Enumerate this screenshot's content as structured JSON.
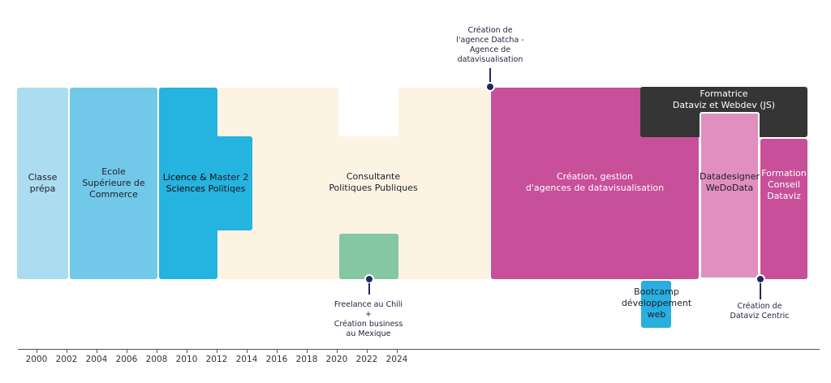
{
  "colors": {
    "prepa": "#acdcf0",
    "ecole": "#72c8e8",
    "licence": "#25b3df",
    "consultante": "#fdf3e3",
    "freelance": "#84c7a2",
    "creation": "#c84f99",
    "formatrice": "#353535",
    "datadesigner": "#e08fbf",
    "formation": "#c84f99",
    "bootcamp": "#29aee0",
    "marker": "#1f2b5c"
  },
  "blocks": {
    "prepa": "Classe\nprépa",
    "ecole": "Ecole\nSupérieure de\nCommerce",
    "licence": "Licence & Master 2\nSciences Politiqes",
    "consultante": "Consultante\nPolitiques Publiques",
    "creation": "Création, gestion\nd'agences de datavisualisation",
    "formatrice": "Formatrice\nDataviz et Webdev (JS)",
    "datadesigner": "Datadesigner\nWeDoData",
    "formation": "Formation\nConseil\nDataviz",
    "bootcamp": "Bootcamp\ndéveloppement\nweb"
  },
  "annotations": {
    "datcha": "Création de\nl'agence Datcha -\nAgence de\ndatavisualisation",
    "freelance": "Freelance au Chili\n+\nCréation business\nau Mexique",
    "dataviz_centric": "Création de\nDataviz Centric"
  },
  "axis": {
    "ticks": [
      "2000",
      "2002",
      "2004",
      "2006",
      "2008",
      "2010",
      "2012",
      "2014",
      "2016",
      "2018",
      "2020",
      "2022",
      "2024"
    ]
  }
}
